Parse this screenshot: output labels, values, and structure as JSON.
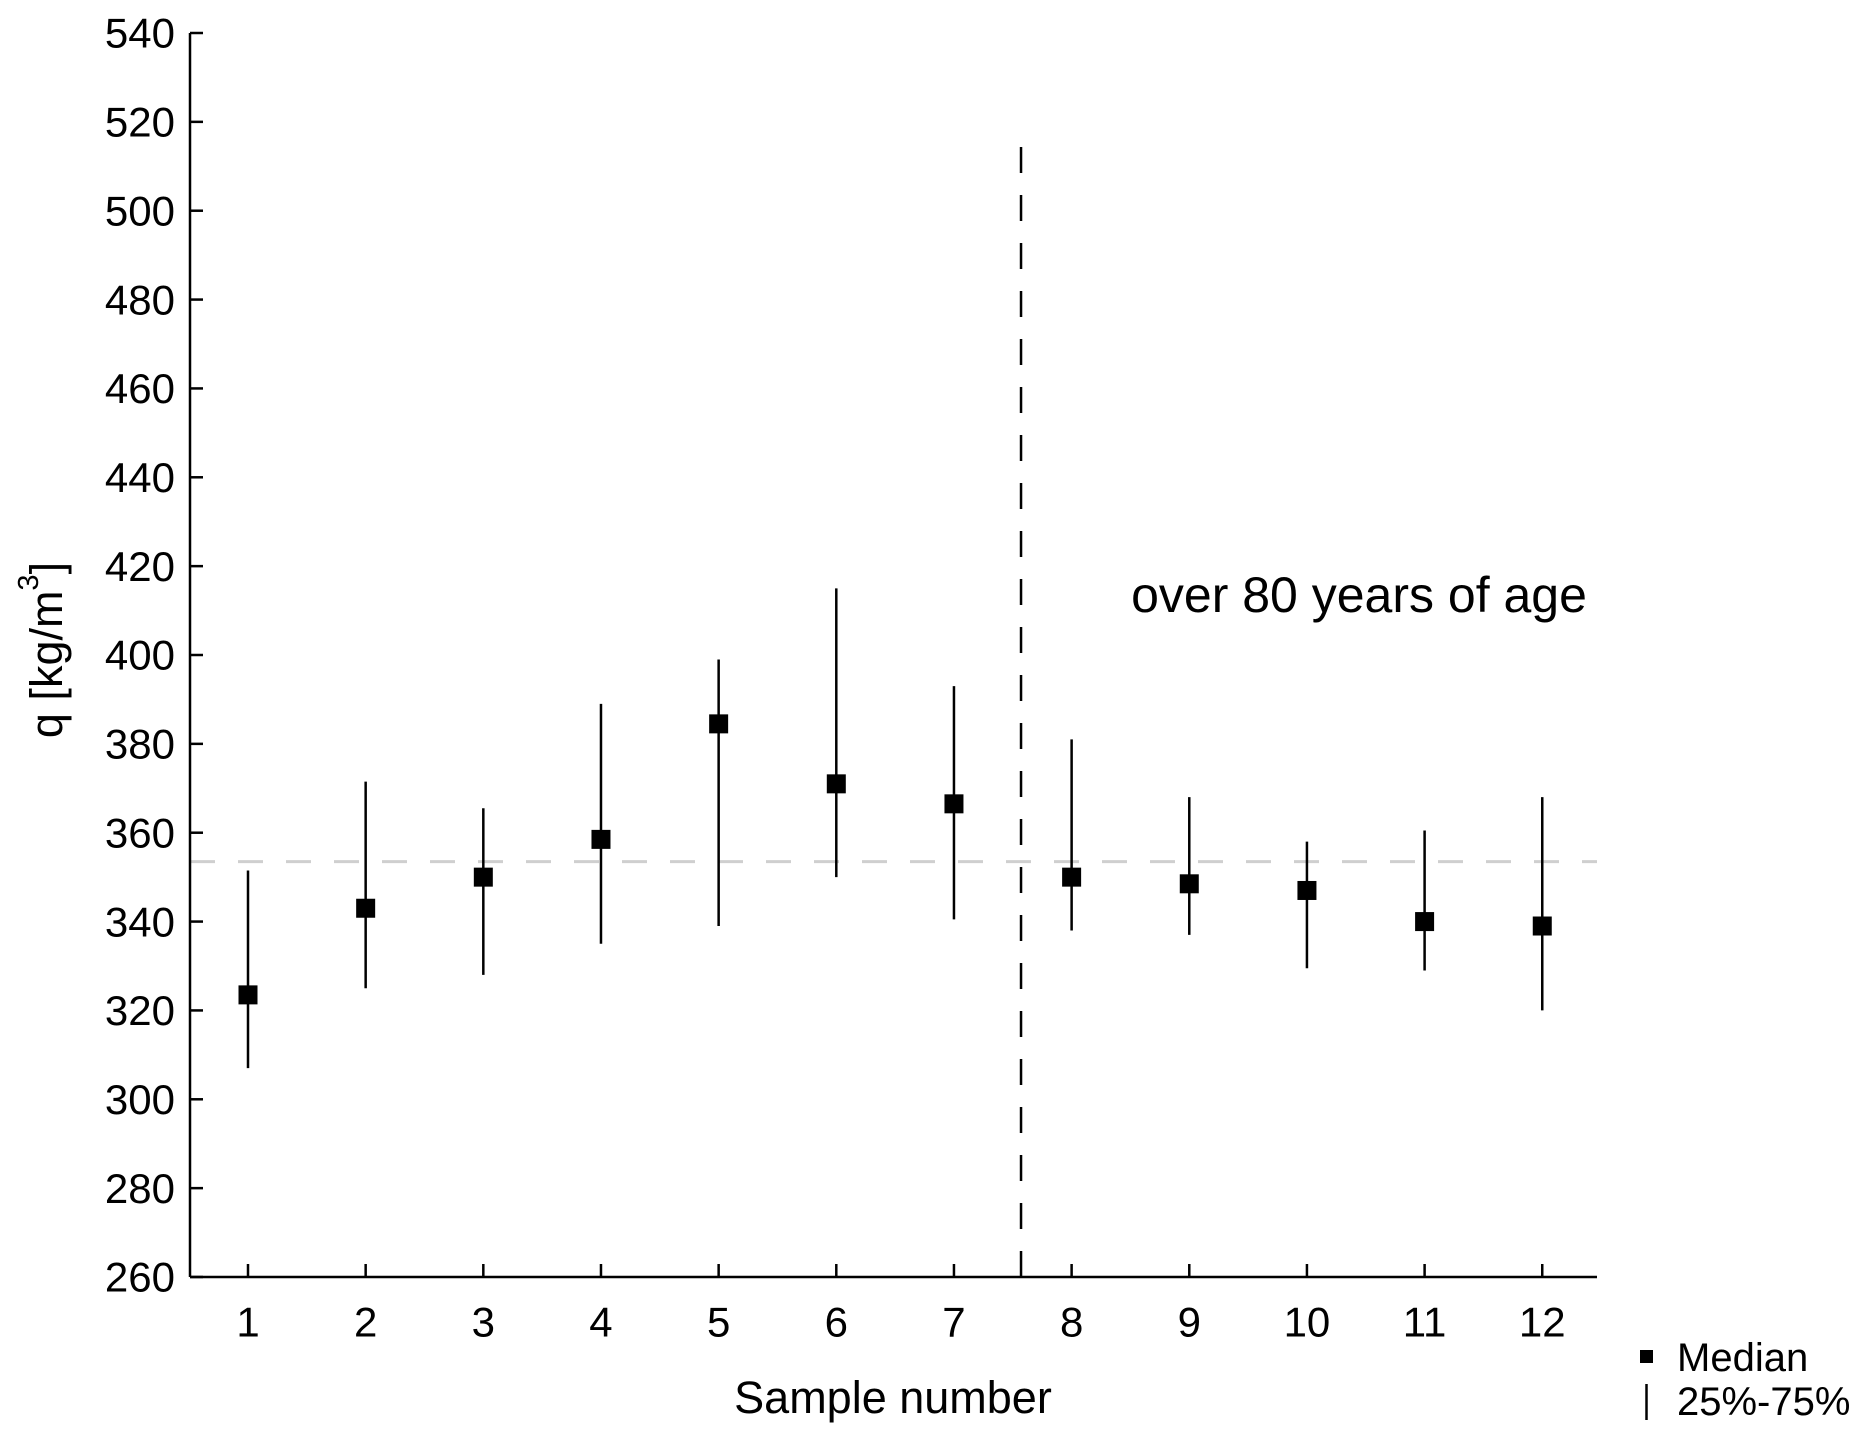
{
  "chart_data": {
    "type": "scatter",
    "title": "",
    "xlabel": "Sample number",
    "ylabel": "q [kg/m3]",
    "ylabel_parts": {
      "base": "q [kg/m",
      "sup": "3",
      "close": "]"
    },
    "annotation": "over 80 years of age",
    "x": [
      1,
      2,
      3,
      4,
      5,
      6,
      7,
      8,
      9,
      10,
      11,
      12
    ],
    "x_tick_labels": [
      "1",
      "2",
      "3",
      "4",
      "5",
      "6",
      "7",
      "8",
      "9",
      "10",
      "11",
      "12"
    ],
    "y_tick_labels": [
      "260",
      "280",
      "300",
      "320",
      "340",
      "360",
      "380",
      "400",
      "420",
      "440",
      "460",
      "480",
      "500",
      "520",
      "540"
    ],
    "ylim": [
      260,
      540
    ],
    "ytick_step": 20,
    "grid": false,
    "series": [
      {
        "name": "Median",
        "marker": "square",
        "values": [
          323.5,
          343,
          350,
          358.5,
          384.5,
          371,
          366.5,
          350,
          348.5,
          347,
          340,
          339
        ]
      },
      {
        "name": "25%-75%",
        "marker": "error-bar",
        "lower": [
          307,
          325,
          328,
          335,
          339,
          350,
          340.5,
          338,
          337,
          329.5,
          329,
          320
        ],
        "upper": [
          351.5,
          371.5,
          365.5,
          389,
          399,
          415,
          393,
          381,
          368,
          358,
          360.5,
          368
        ]
      }
    ],
    "reference_lines": {
      "horizontal": {
        "value": 353.5,
        "style": "dashed",
        "color": "#cfcfcf"
      },
      "vertical": {
        "x": 7.57,
        "from_value": 260,
        "to_value": 518,
        "style": "dashed",
        "color": "#000000"
      }
    },
    "legend": {
      "position": "bottom-right",
      "items": [
        {
          "marker": "square",
          "label": "Median"
        },
        {
          "marker": "line",
          "label": "25%-75%"
        }
      ]
    },
    "colors": {
      "data": "#000000",
      "axis": "#000000",
      "background": "#ffffff"
    }
  }
}
